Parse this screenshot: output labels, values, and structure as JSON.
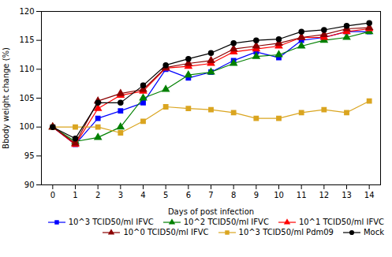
{
  "chart_data": {
    "type": "line",
    "x": [
      0,
      1,
      2,
      3,
      4,
      5,
      6,
      7,
      8,
      9,
      10,
      11,
      12,
      13,
      14
    ],
    "series": [
      {
        "name": "10^3 TCID50/ml IFVC",
        "color": "#0000FF",
        "marker": "square",
        "values": [
          100,
          97.0,
          101.5,
          102.8,
          104.2,
          110.0,
          108.5,
          109.5,
          111.5,
          113.0,
          112.0,
          115.0,
          115.5,
          116.5,
          116.5
        ]
      },
      {
        "name": "10^2 TCID50/ml IFVC",
        "color": "#008000",
        "marker": "triangle",
        "values": [
          100,
          97.5,
          98.2,
          100.0,
          105.0,
          106.5,
          109.0,
          109.5,
          111.0,
          112.2,
          112.5,
          114.0,
          115.0,
          115.5,
          116.5
        ]
      },
      {
        "name": "10^1 TCID50/ml IFVC",
        "color": "#FF0000",
        "marker": "triangle",
        "values": [
          100,
          97.0,
          103.2,
          105.5,
          106.2,
          110.2,
          110.5,
          111.0,
          113.0,
          113.5,
          114.0,
          115.5,
          115.5,
          116.5,
          117.0
        ]
      },
      {
        "name": "10^0 TCID50/ml IFVC",
        "color": "#8B0000",
        "marker": "triangle",
        "values": [
          100,
          97.2,
          104.5,
          105.8,
          106.5,
          110.3,
          111.0,
          111.5,
          113.5,
          114.0,
          114.5,
          115.5,
          116.0,
          117.0,
          117.2
        ]
      },
      {
        "name": "10^3 TCID50/ml Pdm09",
        "color": "#DAA520",
        "marker": "square",
        "values": [
          100,
          100.0,
          100.0,
          99.0,
          101.0,
          103.5,
          103.2,
          103.0,
          102.5,
          101.5,
          101.5,
          102.5,
          103.0,
          102.5,
          104.5
        ]
      },
      {
        "name": "Mock",
        "color": "#000000",
        "marker": "circle",
        "values": [
          100,
          98.0,
          104.2,
          104.2,
          107.2,
          110.7,
          111.8,
          112.8,
          114.5,
          115.0,
          115.2,
          116.5,
          116.8,
          117.5,
          118.0
        ]
      }
    ],
    "xlabel": "Days of post infection",
    "ylabel": "Bbody weight change (%)",
    "xlim": [
      -0.5,
      14.5
    ],
    "xticks": [
      0,
      1,
      2,
      3,
      4,
      5,
      6,
      7,
      8,
      9,
      10,
      11,
      12,
      13,
      14
    ],
    "ylim": [
      90,
      120
    ],
    "yticks": [
      90,
      95,
      100,
      105,
      110,
      115,
      120
    ],
    "grid": false,
    "legend": "lower right"
  }
}
